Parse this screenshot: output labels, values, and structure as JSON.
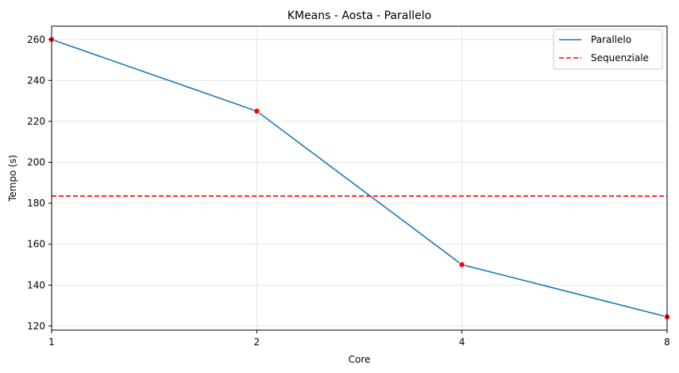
{
  "chart_data": {
    "type": "line",
    "title": "KMeans - Aosta - Parallelo",
    "xlabel": "Core",
    "ylabel": "Tempo (s)",
    "x_scale": "log2",
    "categories": [
      "1",
      "2",
      "4",
      "8"
    ],
    "x": [
      1,
      2,
      4,
      8
    ],
    "xlim": [
      1,
      8
    ],
    "ylim": [
      118,
      266.5
    ],
    "yticks": [
      120,
      140,
      160,
      180,
      200,
      220,
      240,
      260
    ],
    "grid": true,
    "legend_position": "top-right",
    "series": [
      {
        "name": "Parallelo",
        "values": [
          260,
          225,
          150,
          124.5
        ],
        "color": "#1f77b4",
        "marker_color": "#ff0000",
        "style": "solid"
      },
      {
        "name": "Sequenziale",
        "type": "hline",
        "value": 183.5,
        "color": "#ff0000",
        "style": "dashed"
      }
    ]
  }
}
